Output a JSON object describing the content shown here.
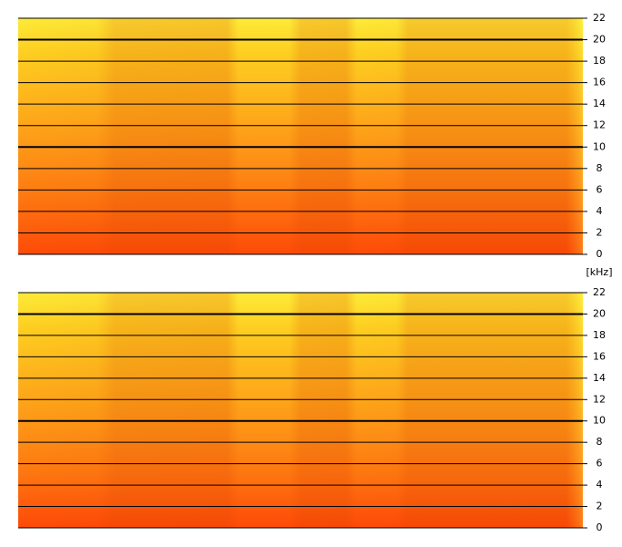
{
  "chart_data": [
    {
      "type": "spectrogram",
      "ylim": [
        0,
        22
      ],
      "yticks": [
        0,
        2,
        4,
        6,
        8,
        10,
        12,
        14,
        16,
        18,
        20,
        22
      ],
      "major_gridlines": [
        10,
        20
      ],
      "grid": true
    },
    {
      "type": "spectrogram",
      "y_label": "[kHz]",
      "ylim": [
        0,
        22
      ],
      "yticks": [
        0,
        2,
        4,
        6,
        8,
        10,
        12,
        14,
        16,
        18,
        20,
        22
      ],
      "major_gridlines": [
        10,
        20
      ],
      "grid": true
    }
  ]
}
